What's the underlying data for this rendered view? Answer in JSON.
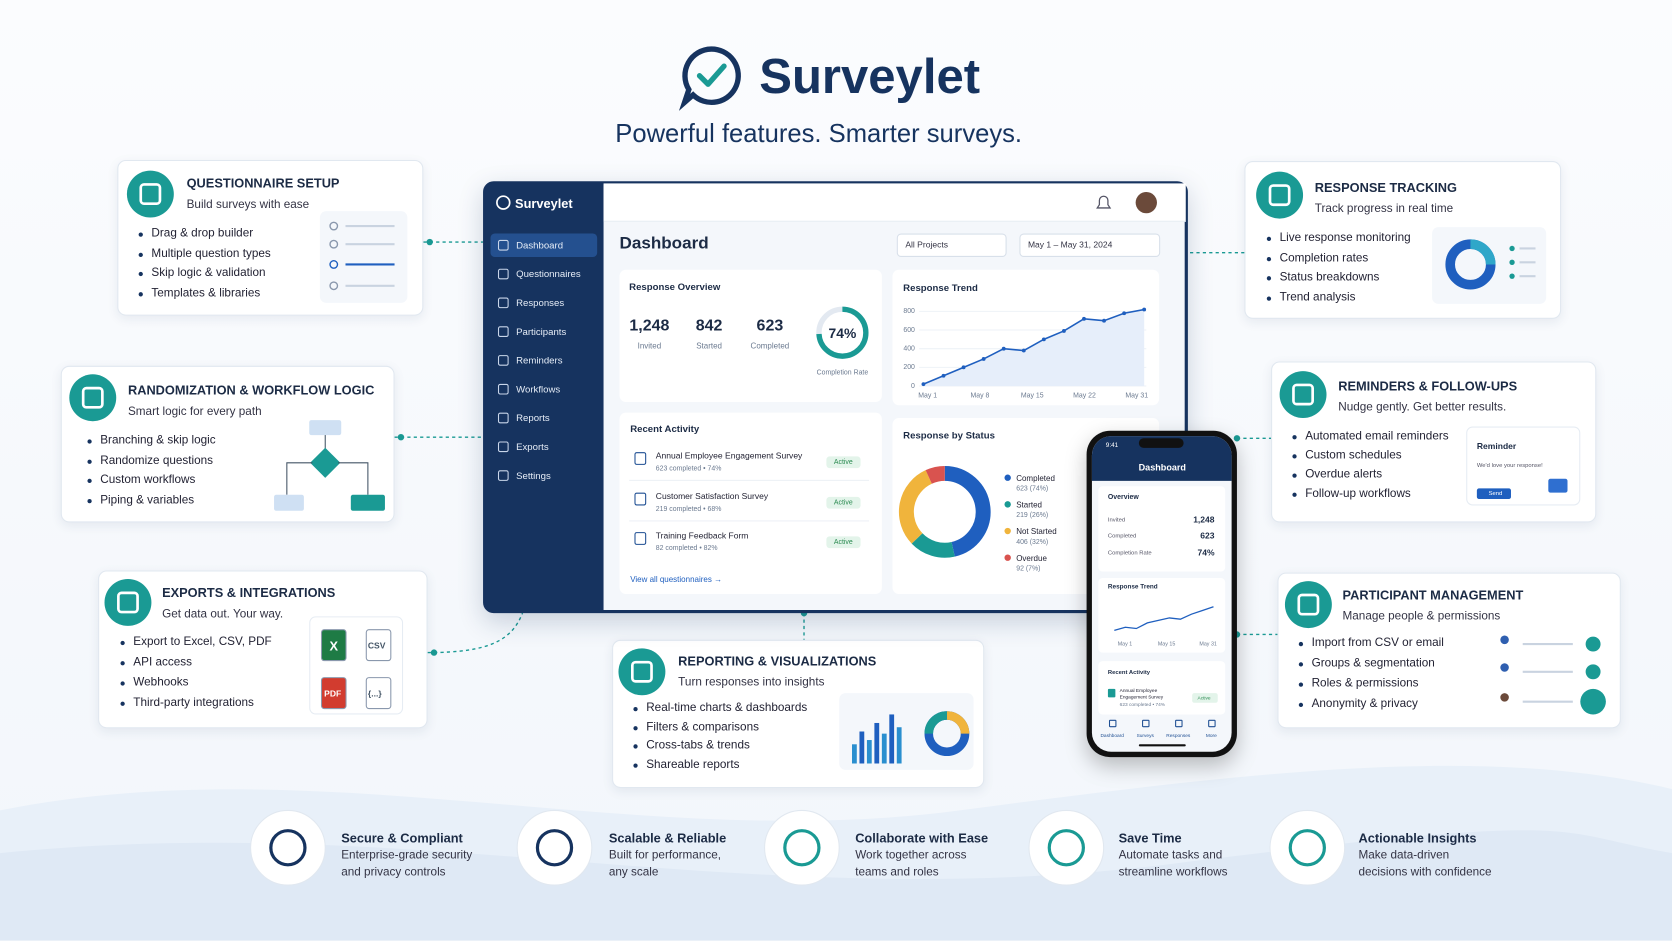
{
  "header": {
    "title": "Surveylet",
    "tagline": "Powerful features. Smarter surveys."
  },
  "features": [
    {
      "title": "QUESTIONNAIRE SETUP",
      "subtitle": "Build surveys with ease",
      "bullets": [
        "Drag & drop builder",
        "Multiple question types",
        "Skip logic & validation",
        "Templates & libraries"
      ]
    },
    {
      "title": "RANDOMIZATION & WORKFLOW LOGIC",
      "subtitle": "Smart logic for every path",
      "bullets": [
        "Branching & skip logic",
        "Randomize questions",
        "Custom workflows",
        "Piping & variables"
      ]
    },
    {
      "title": "EXPORTS & INTEGRATIONS",
      "subtitle": "Get data out. Your way.",
      "bullets": [
        "Export to Excel, CSV, PDF",
        "API access",
        "Webhooks",
        "Third-party integrations"
      ]
    },
    {
      "title": "RESPONSE TRACKING",
      "subtitle": "Track progress in real time",
      "bullets": [
        "Live response monitoring",
        "Completion rates",
        "Status breakdowns",
        "Trend analysis"
      ]
    },
    {
      "title": "REMINDERS & FOLLOW-UPS",
      "subtitle": "Nudge gently. Get better results.",
      "bullets": [
        "Automated email reminders",
        "Custom schedules",
        "Overdue alerts",
        "Follow-up workflows"
      ]
    },
    {
      "title": "PARTICIPANT MANAGEMENT",
      "subtitle": "Manage people & permissions",
      "bullets": [
        "Import from CSV or email",
        "Groups & segmentation",
        "Roles & permissions",
        "Anonymity & privacy"
      ]
    },
    {
      "title": "REPORTING & VISUALIZATIONS",
      "subtitle": "Turn responses into insights",
      "bullets": [
        "Real-time charts & dashboards",
        "Filters & comparisons",
        "Cross-tabs & trends",
        "Shareable reports"
      ]
    }
  ],
  "export_files": [
    "X",
    "CSV",
    "PDF",
    "{...}"
  ],
  "reminder_card": {
    "title": "Reminder",
    "message": "We'd love your response!",
    "button": "Send"
  },
  "dashboard": {
    "brand": "Surveylet",
    "nav": [
      "Dashboard",
      "Questionnaires",
      "Responses",
      "Participants",
      "Reminders",
      "Workflows",
      "Reports",
      "Exports",
      "Settings"
    ],
    "title": "Dashboard",
    "filters": [
      "All Projects",
      "May 1 – May 31, 2024"
    ],
    "overview": {
      "title": "Response Overview",
      "stats": [
        {
          "value": "1,248",
          "label": "Invited"
        },
        {
          "value": "842",
          "label": "Started"
        },
        {
          "value": "623",
          "label": "Completed"
        }
      ],
      "completion": {
        "value": 74,
        "label": "74%",
        "caption": "Completion Rate"
      }
    },
    "trend": {
      "title": "Response Trend",
      "ylim": [
        0,
        850
      ],
      "yticks": [
        0,
        200,
        400,
        600,
        800
      ],
      "x_labels": [
        "May 1",
        "May 8",
        "May 15",
        "May 22",
        "May 31"
      ],
      "values": [
        20,
        110,
        200,
        290,
        400,
        380,
        500,
        590,
        720,
        700,
        780,
        820
      ]
    },
    "activity": {
      "title": "Recent Activity",
      "items": [
        {
          "name": "Annual Employee Engagement Survey",
          "detail": "623 completed • 74%",
          "status": "Active"
        },
        {
          "name": "Customer Satisfaction Survey",
          "detail": "219 completed • 68%",
          "status": "Active"
        },
        {
          "name": "Training Feedback Form",
          "detail": "82 completed • 82%",
          "status": "Active"
        }
      ],
      "link": "View all questionnaires →"
    },
    "status": {
      "title": "Response by Status",
      "items": [
        {
          "name": "Completed",
          "count": 623,
          "label": "623 (74%)",
          "color": "#1f5fbf"
        },
        {
          "name": "Started",
          "count": 219,
          "label": "219 (26%)",
          "color": "#1a9a94"
        },
        {
          "name": "Not Started",
          "count": 406,
          "label": "406 (32%)",
          "color": "#f0b43c"
        },
        {
          "name": "Overdue",
          "count": 92,
          "label": "92 (7%)",
          "color": "#d9534f"
        }
      ]
    }
  },
  "phone": {
    "time": "9:41",
    "title": "Dashboard",
    "overview": {
      "title": "Overview",
      "rows": [
        {
          "label": "Invited",
          "value": "1,248"
        },
        {
          "label": "Completed",
          "value": "623"
        },
        {
          "label": "Completion Rate",
          "value": "74%"
        }
      ]
    },
    "trend": {
      "title": "Response Trend",
      "ylim": [
        0,
        600
      ],
      "values": [
        100,
        150,
        130,
        220,
        260,
        300,
        280,
        360,
        420,
        480
      ],
      "x_labels": [
        "May 1",
        "May 15",
        "May 31"
      ]
    },
    "activity": {
      "title": "Recent Activity",
      "name": "Annual Employee Engagement Survey",
      "detail": "623 completed • 74%",
      "status": "Active"
    },
    "tabs": [
      "Dashboard",
      "Surveys",
      "Responses",
      "More"
    ]
  },
  "footer": [
    {
      "title": "Secure & Compliant",
      "lines": [
        "Enterprise-grade security",
        "and privacy controls"
      ]
    },
    {
      "title": "Scalable & Reliable",
      "lines": [
        "Built for performance,",
        "any scale"
      ]
    },
    {
      "title": "Collaborate with Ease",
      "lines": [
        "Work together across",
        "teams and roles"
      ]
    },
    {
      "title": "Save Time",
      "lines": [
        "Automate tasks and",
        "streamline workflows"
      ]
    },
    {
      "title": "Actionable Insights",
      "lines": [
        "Make data-driven",
        "decisions with confidence"
      ]
    }
  ]
}
